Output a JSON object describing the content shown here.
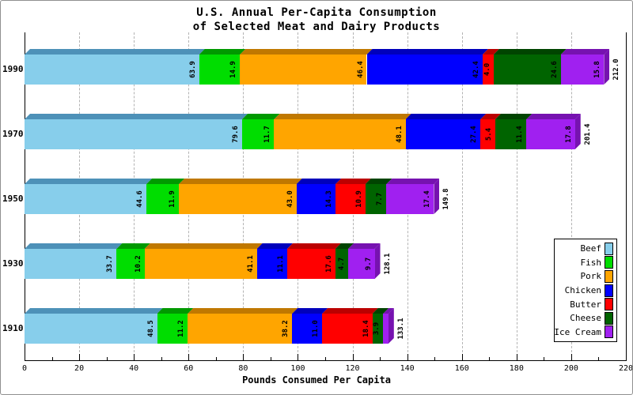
{
  "title": {
    "line1": "U.S. Annual Per-Capita Consumption",
    "line2": "of Selected Meat and Dairy Products"
  },
  "xaxis": {
    "label": "Pounds Consumed Per Capita",
    "ticks": [
      0,
      20,
      40,
      60,
      80,
      100,
      120,
      140,
      160,
      180,
      200,
      220
    ],
    "minor_tick_step": 10
  },
  "chart_data": {
    "type": "bar",
    "orientation": "horizontal",
    "stacked": true,
    "style": "3d-bevel",
    "categories": [
      "1990",
      "1970",
      "1950",
      "1930",
      "1910"
    ],
    "series": [
      {
        "name": "Beef",
        "color": "#87CEEB",
        "shade": "#4D91B8",
        "values": [
          63.9,
          79.6,
          44.6,
          33.7,
          48.5
        ]
      },
      {
        "name": "Fish",
        "color": "#00DD00",
        "shade": "#009900",
        "values": [
          14.9,
          11.7,
          11.9,
          10.2,
          11.2
        ]
      },
      {
        "name": "Pork",
        "color": "#FFA500",
        "shade": "#C07800",
        "values": [
          46.4,
          48.1,
          43.0,
          41.1,
          38.2
        ]
      },
      {
        "name": "Chicken",
        "color": "#0000FF",
        "shade": "#0000BB",
        "values": [
          42.4,
          27.4,
          14.3,
          11.1,
          11.0
        ]
      },
      {
        "name": "Butter",
        "color": "#FF0000",
        "shade": "#BB0000",
        "values": [
          4.0,
          5.4,
          10.9,
          17.6,
          18.4
        ]
      },
      {
        "name": "Cheese",
        "color": "#006400",
        "shade": "#004400",
        "values": [
          24.6,
          11.4,
          7.7,
          4.7,
          3.9
        ]
      },
      {
        "name": "Ice Cream",
        "color": "#A020F0",
        "shade": "#7612B0",
        "values": [
          15.8,
          17.8,
          17.4,
          9.7,
          1.9
        ]
      }
    ],
    "totals": [
      212.0,
      201.4,
      149.8,
      128.1,
      133.1
    ],
    "xlim": [
      0,
      220
    ],
    "grid": "vertical dashed every 20",
    "legend_position": "right-middle",
    "value_labels": "rotated 90deg at segment end; omitted when segment too narrow"
  }
}
